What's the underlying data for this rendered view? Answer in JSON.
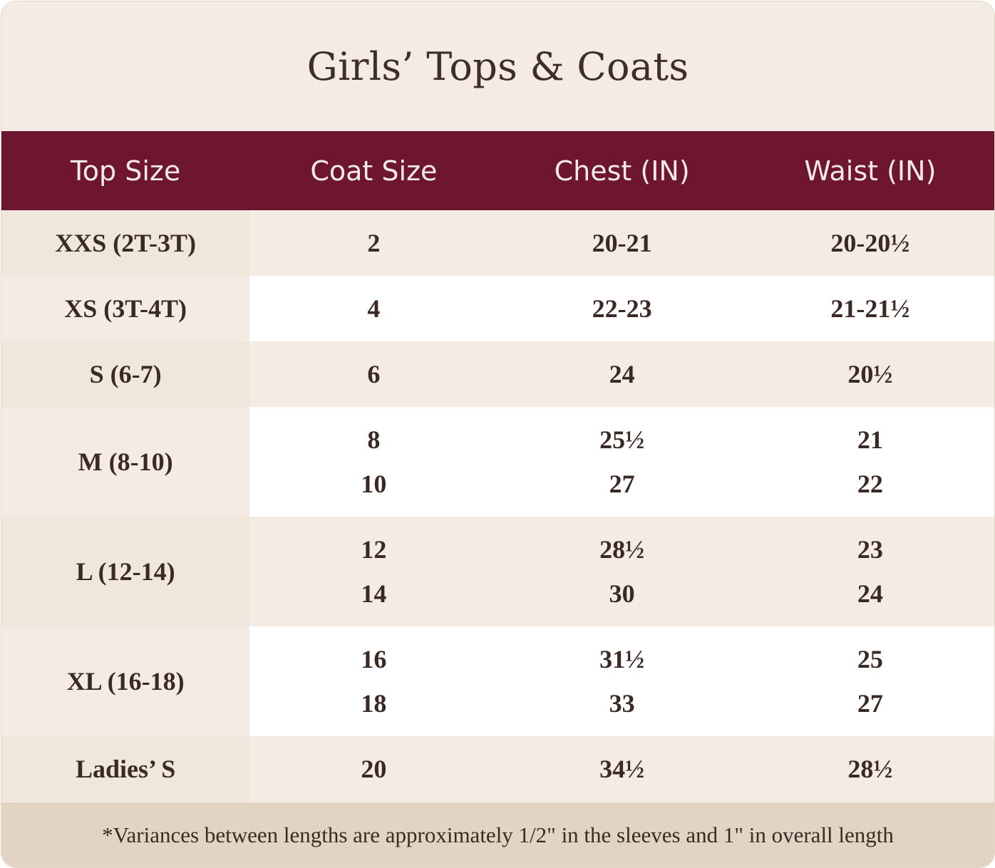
{
  "title": "Girls’ Tops & Coats",
  "header": {
    "top_size": "Top Size",
    "coat_size": "Coat Size",
    "chest": "Chest (IN)",
    "waist": "Waist (IN)"
  },
  "rows": [
    {
      "top": "XXS (2T-3T)",
      "coat": [
        "2"
      ],
      "chest": [
        "20-21"
      ],
      "waist": [
        "20-20½"
      ]
    },
    {
      "top": "XS (3T-4T)",
      "coat": [
        "4"
      ],
      "chest": [
        "22-23"
      ],
      "waist": [
        "21-21½"
      ]
    },
    {
      "top": "S (6-7)",
      "coat": [
        "6"
      ],
      "chest": [
        "24"
      ],
      "waist": [
        "20½"
      ]
    },
    {
      "top": "M (8-10)",
      "coat": [
        "8",
        "10"
      ],
      "chest": [
        "25½",
        "27"
      ],
      "waist": [
        "21",
        "22"
      ]
    },
    {
      "top": "L (12-14)",
      "coat": [
        "12",
        "14"
      ],
      "chest": [
        "28½",
        "30"
      ],
      "waist": [
        "23",
        "24"
      ]
    },
    {
      "top": "XL (16-18)",
      "coat": [
        "16",
        "18"
      ],
      "chest": [
        "31½",
        "33"
      ],
      "waist": [
        "25",
        "27"
      ]
    },
    {
      "top": "Ladies’ S",
      "coat": [
        "20"
      ],
      "chest": [
        "34½"
      ],
      "waist": [
        "28½"
      ]
    }
  ],
  "footer": "*Variances between lengths are approximately 1/2\" in the sleeves and 1\" in overall length",
  "colors": {
    "header_bg": "#6e1530",
    "background": "#f4ece4",
    "footer_bg": "#e1d4c3",
    "text": "#3b2a24"
  }
}
